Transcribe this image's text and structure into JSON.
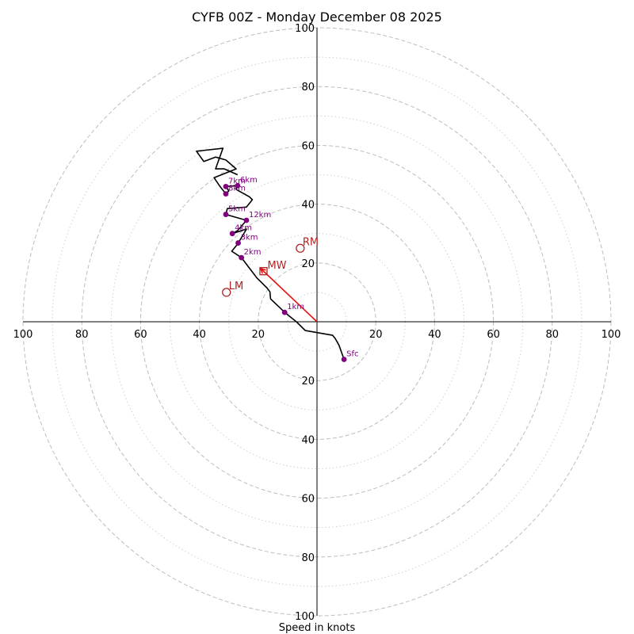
{
  "chart_data": {
    "type": "hodograph",
    "title": "CYFB 00Z - Monday December 08 2025",
    "xlabel": "Speed in knots",
    "units": "knots",
    "max_speed": 100,
    "ring_major": [
      20,
      40,
      60,
      80,
      100
    ],
    "ring_minor": [
      10,
      30,
      50,
      70,
      90
    ],
    "axis_tick_labels": [
      "20",
      "40",
      "60",
      "80",
      "100"
    ],
    "profile": [
      {
        "u": 9.2,
        "v": -12.8
      },
      {
        "u": 8.5,
        "v": -10.8
      },
      {
        "u": 7.5,
        "v": -8.0
      },
      {
        "u": 6.2,
        "v": -5.7
      },
      {
        "u": 5.3,
        "v": -4.6
      },
      {
        "u": -4.0,
        "v": -3.0
      },
      {
        "u": -7.0,
        "v": 0.0
      },
      {
        "u": -11.0,
        "v": 3.2
      },
      {
        "u": -15.8,
        "v": 7.8
      },
      {
        "u": -16.0,
        "v": 10.2
      },
      {
        "u": -17.0,
        "v": 11.5
      },
      {
        "u": -20.5,
        "v": 15.0
      },
      {
        "u": -25.7,
        "v": 21.8
      },
      {
        "u": -29.0,
        "v": 24.0
      },
      {
        "u": -26.5,
        "v": 27.0
      },
      {
        "u": -26.8,
        "v": 26.8
      },
      {
        "u": -24.0,
        "v": 31.5
      },
      {
        "u": -28.8,
        "v": 30.0
      },
      {
        "u": -27.0,
        "v": 31.0
      },
      {
        "u": -24.0,
        "v": 34.5
      },
      {
        "u": -31.0,
        "v": 36.5
      },
      {
        "u": -30.5,
        "v": 38.5
      },
      {
        "u": -24.0,
        "v": 39.0
      },
      {
        "u": -22.0,
        "v": 41.5
      },
      {
        "u": -23.0,
        "v": 42.5
      },
      {
        "u": -27.5,
        "v": 45.0
      },
      {
        "u": -27.0,
        "v": 46.3
      },
      {
        "u": -31.0,
        "v": 46.0
      },
      {
        "u": -30.0,
        "v": 44.5
      },
      {
        "u": -31.0,
        "v": 43.5
      },
      {
        "u": -33.0,
        "v": 46.0
      },
      {
        "u": -35.0,
        "v": 49.0
      },
      {
        "u": -27.5,
        "v": 52.0
      },
      {
        "u": -31.0,
        "v": 55.0
      },
      {
        "u": -34.5,
        "v": 56.0
      },
      {
        "u": -38.5,
        "v": 54.5
      },
      {
        "u": -41.0,
        "v": 58.0
      },
      {
        "u": -32.0,
        "v": 59.0
      },
      {
        "u": -34.5,
        "v": 52.0
      },
      {
        "u": -31.5,
        "v": 52.0
      },
      {
        "u": -27.0,
        "v": 50.0
      }
    ],
    "height_points": [
      {
        "label": "Sfc",
        "u": 9.2,
        "v": -12.8
      },
      {
        "label": "1km",
        "u": -11.0,
        "v": 3.2
      },
      {
        "label": "2km",
        "u": -25.7,
        "v": 21.8
      },
      {
        "label": "3km",
        "u": -26.8,
        "v": 26.8
      },
      {
        "label": "4km",
        "u": -28.8,
        "v": 30.0
      },
      {
        "label": "5km",
        "u": -31.0,
        "v": 36.5
      },
      {
        "label": "6km",
        "u": -27.0,
        "v": 46.3
      },
      {
        "label": "7km",
        "u": -31.0,
        "v": 46.0
      },
      {
        "label": "8km",
        "u": -31.0,
        "v": 43.5
      },
      {
        "label": "12km",
        "u": -24.0,
        "v": 34.5
      }
    ],
    "storm_motion": {
      "rm": {
        "label": "RM",
        "u": -5.7,
        "v": 25.0
      },
      "lm": {
        "label": "LM",
        "u": -30.8,
        "v": 10.0
      },
      "mw": {
        "label": "MW",
        "u": -18.2,
        "v": 17.2
      }
    }
  },
  "colors": {
    "profile_line": "#000000",
    "height_points": "#800080",
    "storm_motion": "#b22222",
    "shear_vector": "#e8100f",
    "ring_major": "#bdbdbd",
    "ring_minor": "#d0d0d0"
  }
}
